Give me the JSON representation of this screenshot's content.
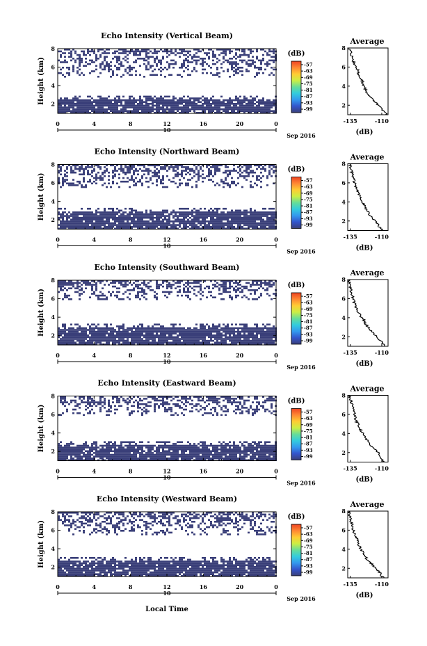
{
  "figure": {
    "xlabel": "Local Time",
    "date_label": "Sep 2016",
    "day_label": "10"
  },
  "colors": {
    "echo": "#3a3f79",
    "colorbar": [
      "#3a3f79",
      "#3355cc",
      "#3399ee",
      "#33ccdd",
      "#66dd99",
      "#ccee44",
      "#ffcc33",
      "#ff8833",
      "#ee4422"
    ]
  },
  "chart_data": [
    {
      "type": "heatmap",
      "title": "Echo Intensity (Vertical Beam)",
      "ylabel": "Height (km)",
      "x_ticks": [
        "0",
        "4",
        "8",
        "12",
        "16",
        "20",
        "0"
      ],
      "y_ticks": [
        "2",
        "4",
        "6",
        "8"
      ],
      "xlim": [
        0,
        24
      ],
      "ylim": [
        1,
        8
      ],
      "colorbar_label": "(dB)",
      "colorbar_ticks": [
        "-57",
        "-63",
        "-69",
        "-75",
        "-81",
        "-87",
        "-93",
        "-99"
      ],
      "low_layer_top_km": 2.6,
      "upper_echo_range_km": [
        5.0,
        8.0
      ],
      "profile": {
        "title": "Average",
        "xlabel": "(dB)",
        "x_ticks": [
          "-135",
          "-110"
        ],
        "y_ticks": [
          "2",
          "4",
          "6",
          "8"
        ],
        "xlim": [
          -137,
          -105
        ],
        "ylim": [
          1,
          8
        ],
        "height_km": [
          1.0,
          1.6,
          2.2,
          2.7,
          3.2,
          3.7,
          4.2,
          4.7,
          5.2,
          5.7,
          6.2,
          6.7,
          7.2,
          7.7,
          8.0
        ],
        "db": [
          -106,
          -110,
          -114,
          -118,
          -121,
          -123,
          -125,
          -126,
          -128,
          -129,
          -131,
          -133,
          -134,
          -135,
          -136
        ]
      }
    },
    {
      "type": "heatmap",
      "title": "Echo Intensity (Northward Beam)",
      "ylabel": "Height (km)",
      "x_ticks": [
        "0",
        "4",
        "8",
        "12",
        "16",
        "20",
        "0"
      ],
      "y_ticks": [
        "2",
        "4",
        "6",
        "8"
      ],
      "xlim": [
        0,
        24
      ],
      "ylim": [
        1,
        8
      ],
      "colorbar_label": "(dB)",
      "colorbar_ticks": [
        "-57",
        "-63",
        "-69",
        "-75",
        "-81",
        "-87",
        "-93",
        "-99"
      ],
      "low_layer_top_km": 3.0,
      "upper_echo_range_km": [
        5.5,
        8.0
      ],
      "profile": {
        "title": "Average",
        "xlabel": "(dB)",
        "x_ticks": [
          "-135",
          "-110"
        ],
        "y_ticks": [
          "2",
          "4",
          "6",
          "8"
        ],
        "xlim": [
          -137,
          -105
        ],
        "ylim": [
          1,
          8
        ],
        "height_km": [
          1.0,
          1.6,
          2.2,
          2.7,
          3.2,
          3.7,
          4.2,
          4.7,
          5.2,
          5.7,
          6.2,
          6.7,
          7.2,
          7.7,
          8.0
        ],
        "db": [
          -110,
          -113,
          -117,
          -120,
          -122,
          -124,
          -126,
          -128,
          -129,
          -131,
          -132,
          -133,
          -134,
          -135,
          -136
        ]
      }
    },
    {
      "type": "heatmap",
      "title": "Echo Intensity (Southward Beam)",
      "ylabel": "Height (km)",
      "x_ticks": [
        "0",
        "4",
        "8",
        "12",
        "16",
        "20",
        "0"
      ],
      "y_ticks": [
        "2",
        "4",
        "6",
        "8"
      ],
      "xlim": [
        0,
        24
      ],
      "ylim": [
        1,
        8
      ],
      "colorbar_label": "(dB)",
      "colorbar_ticks": [
        "-57",
        "-63",
        "-69",
        "-75",
        "-81",
        "-87",
        "-93",
        "-99"
      ],
      "low_layer_top_km": 3.0,
      "upper_echo_range_km": [
        6.0,
        8.0
      ],
      "profile": {
        "title": "Average",
        "xlabel": "(dB)",
        "x_ticks": [
          "-135",
          "-110"
        ],
        "y_ticks": [
          "2",
          "4",
          "6",
          "8"
        ],
        "xlim": [
          -137,
          -105
        ],
        "ylim": [
          1,
          8
        ],
        "height_km": [
          1.0,
          1.6,
          2.2,
          2.7,
          3.2,
          3.7,
          4.2,
          4.7,
          5.2,
          5.7,
          6.2,
          6.7,
          7.2,
          7.7,
          8.0
        ],
        "db": [
          -107,
          -111,
          -115,
          -119,
          -122,
          -124,
          -127,
          -129,
          -131,
          -132,
          -133,
          -134,
          -135,
          -136,
          -136
        ]
      }
    },
    {
      "type": "heatmap",
      "title": "Echo Intensity (Eastward Beam)",
      "ylabel": "Height (km)",
      "x_ticks": [
        "0",
        "4",
        "8",
        "12",
        "16",
        "20",
        "0"
      ],
      "y_ticks": [
        "2",
        "4",
        "6",
        "8"
      ],
      "xlim": [
        0,
        24
      ],
      "ylim": [
        1,
        8
      ],
      "colorbar_label": "(dB)",
      "colorbar_ticks": [
        "-57",
        "-63",
        "-69",
        "-75",
        "-81",
        "-87",
        "-93",
        "-99"
      ],
      "low_layer_top_km": 2.8,
      "upper_echo_range_km": [
        6.0,
        8.0
      ],
      "profile": {
        "title": "Average",
        "xlabel": "(dB)",
        "x_ticks": [
          "-135",
          "-110"
        ],
        "y_ticks": [
          "2",
          "4",
          "6",
          "8"
        ],
        "xlim": [
          -137,
          -105
        ],
        "ylim": [
          1,
          8
        ],
        "height_km": [
          1.0,
          1.6,
          2.2,
          2.7,
          3.2,
          3.7,
          4.2,
          4.7,
          5.2,
          5.7,
          6.2,
          6.7,
          7.2,
          7.7,
          8.0
        ],
        "db": [
          -108,
          -111,
          -114,
          -118,
          -121,
          -124,
          -126,
          -128,
          -130,
          -131,
          -132,
          -133,
          -134,
          -135,
          -136
        ]
      }
    },
    {
      "type": "heatmap",
      "title": "Echo Intensity (Westward Beam)",
      "ylabel": "Height (km)",
      "x_ticks": [
        "0",
        "4",
        "8",
        "12",
        "16",
        "20",
        "0"
      ],
      "y_ticks": [
        "2",
        "4",
        "6",
        "8"
      ],
      "xlim": [
        0,
        24
      ],
      "ylim": [
        1,
        8
      ],
      "colorbar_label": "(dB)",
      "colorbar_ticks": [
        "-57",
        "-63",
        "-69",
        "-75",
        "-81",
        "-87",
        "-93",
        "-99"
      ],
      "low_layer_top_km": 2.8,
      "upper_echo_range_km": [
        5.5,
        8.0
      ],
      "profile": {
        "title": "Average",
        "xlabel": "(dB)",
        "x_ticks": [
          "-135",
          "-110"
        ],
        "y_ticks": [
          "2",
          "4",
          "6",
          "8"
        ],
        "xlim": [
          -137,
          -105
        ],
        "ylim": [
          1,
          8
        ],
        "height_km": [
          1.0,
          1.6,
          2.2,
          2.7,
          3.2,
          3.7,
          4.2,
          4.7,
          5.2,
          5.7,
          6.2,
          6.7,
          7.2,
          7.7,
          8.0
        ],
        "db": [
          -109,
          -112,
          -116,
          -120,
          -123,
          -125,
          -127,
          -129,
          -130,
          -132,
          -133,
          -134,
          -135,
          -136,
          -136
        ]
      }
    }
  ]
}
